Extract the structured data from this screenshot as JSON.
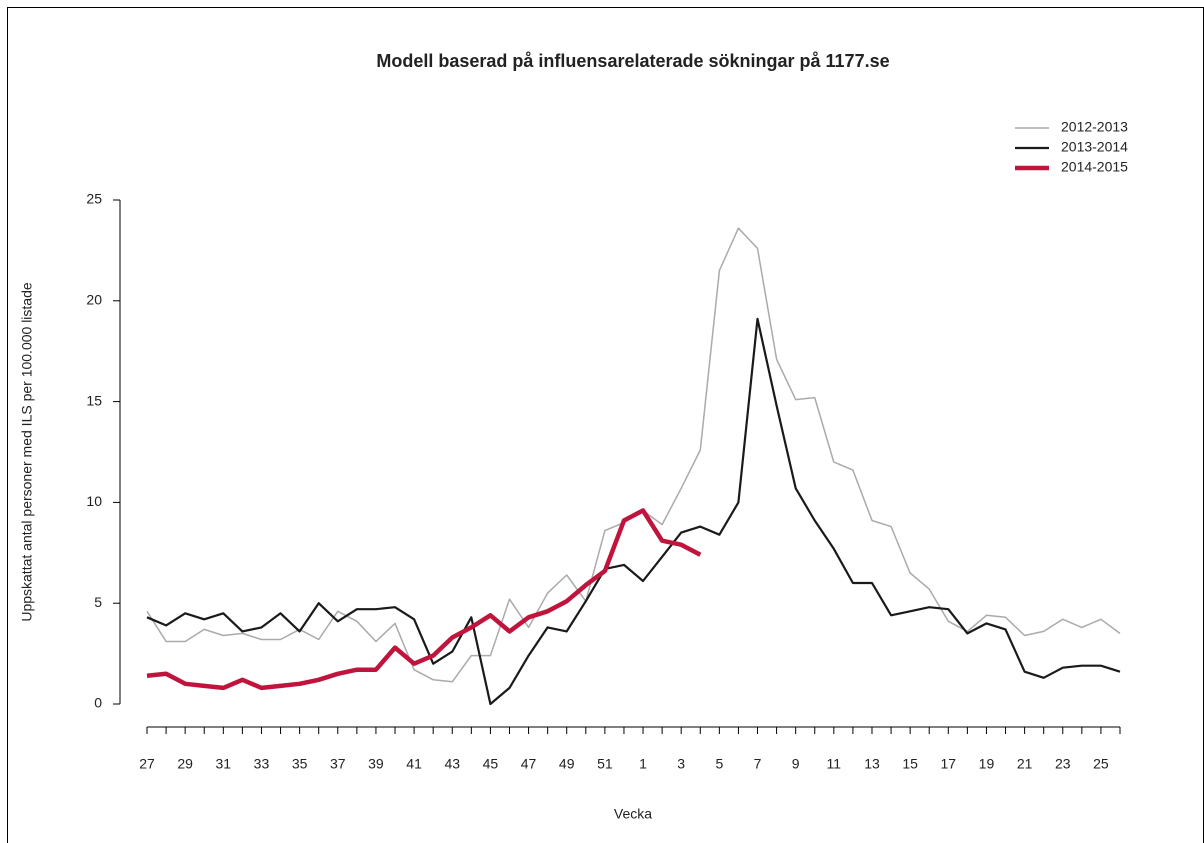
{
  "chart_data": {
    "type": "line",
    "title": "Modell baserad på influensarelaterade sökningar på 1177.se",
    "x_label": "Vecka",
    "y_label": "Uppskattat antal personer med ILS per 100.000 listade",
    "categories": [
      "27",
      null,
      "29",
      null,
      "31",
      null,
      "33",
      null,
      "35",
      null,
      "37",
      null,
      "39",
      null,
      "41",
      null,
      "43",
      null,
      "45",
      null,
      "47",
      null,
      "49",
      null,
      "51",
      null,
      "1",
      null,
      "3",
      null,
      "5",
      null,
      "7",
      null,
      "9",
      null,
      "11",
      null,
      "13",
      null,
      "15",
      null,
      "17",
      null,
      "19",
      null,
      "21",
      null,
      "23",
      null,
      "25",
      null
    ],
    "ylim": [
      0,
      25
    ],
    "yticks": [
      0,
      5,
      10,
      15,
      20,
      25
    ],
    "legend": "top-right",
    "series": [
      {
        "name": "2012-2013",
        "color": "#aaaaaa",
        "values": [
          4.6,
          3.1,
          3.1,
          3.7,
          3.4,
          3.5,
          3.2,
          3.2,
          3.7,
          3.2,
          4.6,
          4.1,
          3.1,
          4.0,
          1.7,
          1.2,
          1.1,
          2.4,
          2.4,
          5.2,
          3.8,
          5.5,
          6.4,
          5.1,
          8.6,
          9.0,
          9.6,
          8.9,
          10.7,
          12.6,
          21.5,
          23.6,
          22.6,
          17.1,
          15.1,
          15.2,
          12.0,
          11.6,
          9.1,
          8.8,
          6.5,
          5.7,
          4.1,
          3.6,
          4.4,
          4.3,
          3.4,
          3.6,
          4.2,
          3.8,
          4.2,
          3.5
        ]
      },
      {
        "name": "2013-2014",
        "color": "#1a1a1a",
        "values": [
          4.3,
          3.9,
          4.5,
          4.2,
          4.5,
          3.6,
          3.8,
          4.5,
          3.6,
          5.0,
          4.1,
          4.7,
          4.7,
          4.8,
          4.2,
          2.0,
          2.6,
          4.3,
          0.0,
          0.8,
          2.4,
          3.8,
          3.6,
          5.1,
          6.7,
          6.9,
          6.1,
          7.3,
          8.5,
          8.8,
          8.4,
          10.0,
          19.1,
          14.8,
          10.7,
          9.1,
          7.7,
          6.0,
          6.0,
          4.4,
          4.6,
          4.8,
          4.7,
          3.5,
          4.0,
          3.7,
          1.6,
          1.3,
          1.8,
          1.9,
          1.9,
          1.6
        ]
      },
      {
        "name": "2014-2015",
        "color": "#c0143c",
        "values": [
          1.4,
          1.5,
          1.0,
          0.9,
          0.8,
          1.2,
          0.8,
          0.9,
          1.0,
          1.2,
          1.5,
          1.7,
          1.7,
          2.8,
          2.0,
          2.4,
          3.3,
          3.8,
          4.4,
          3.6,
          4.3,
          4.6,
          5.1,
          5.9,
          6.6,
          9.1,
          9.6,
          8.1,
          7.9,
          7.4,
          null,
          null,
          null,
          null,
          null,
          null,
          null,
          null,
          null,
          null,
          null,
          null,
          null,
          null,
          null,
          null,
          null,
          null,
          null,
          null,
          null,
          null
        ]
      }
    ]
  }
}
